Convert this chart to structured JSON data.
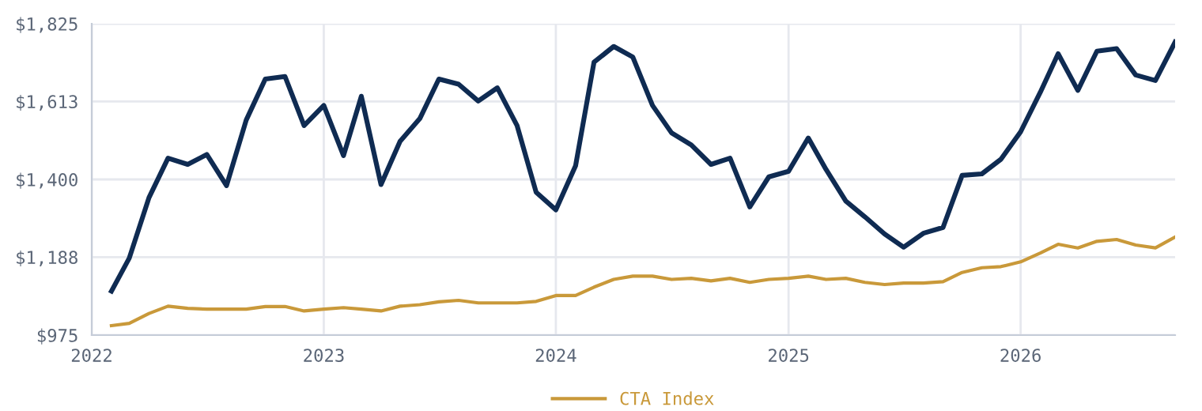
{
  "chart_data": {
    "type": "line",
    "x": [
      "2022-02",
      "2022-03",
      "2022-04",
      "2022-05",
      "2022-06",
      "2022-07",
      "2022-08",
      "2022-09",
      "2022-10",
      "2022-11",
      "2022-12",
      "2023-01",
      "2023-02",
      "2023-03",
      "2023-04",
      "2023-05",
      "2023-06",
      "2023-07",
      "2023-08",
      "2023-09",
      "2023-10",
      "2023-11",
      "2023-12",
      "2024-01",
      "2024-02",
      "2024-03",
      "2024-04",
      "2024-05",
      "2024-06",
      "2024-07",
      "2024-08",
      "2024-09",
      "2024-10",
      "2024-11",
      "2024-12",
      "2025-01",
      "2025-02",
      "2025-03",
      "2025-04",
      "2025-05",
      "2025-06",
      "2025-07",
      "2025-08",
      "2025-09",
      "2025-10",
      "2025-11",
      "2025-12",
      "2026-01",
      "2026-02",
      "2026-03",
      "2026-04",
      "2026-05",
      "2026-06",
      "2026-07",
      "2026-08",
      "2026-09"
    ],
    "series": [
      {
        "color": "#0f2b52",
        "values": [
          1095,
          1185,
          1350,
          1458,
          1441,
          1468,
          1383,
          1562,
          1674,
          1681,
          1547,
          1602,
          1465,
          1627,
          1386,
          1504,
          1566,
          1674,
          1660,
          1614,
          1650,
          1547,
          1365,
          1317,
          1437,
          1720,
          1763,
          1734,
          1602,
          1527,
          1494,
          1441,
          1458,
          1325,
          1407,
          1422,
          1513,
          1427,
          1341,
          1298,
          1251,
          1215,
          1253,
          1269,
          1411,
          1415,
          1455,
          1530,
          1638,
          1743,
          1643,
          1750,
          1757,
          1685,
          1670,
          1775
        ]
      },
      {
        "name": "CTA Index",
        "color": "#c9993a",
        "values": [
          1001,
          1007,
          1034,
          1054,
          1048,
          1046,
          1046,
          1046,
          1053,
          1053,
          1041,
          1046,
          1050,
          1046,
          1041,
          1054,
          1058,
          1066,
          1070,
          1063,
          1063,
          1063,
          1067,
          1083,
          1083,
          1106,
          1127,
          1136,
          1136,
          1127,
          1130,
          1123,
          1130,
          1119,
          1127,
          1130,
          1136,
          1127,
          1130,
          1119,
          1113,
          1117,
          1117,
          1121,
          1146,
          1159,
          1162,
          1175,
          1199,
          1223,
          1213,
          1231,
          1236,
          1221,
          1213,
          1243
        ]
      }
    ],
    "xlim": [
      "2022-01",
      "2026-09"
    ],
    "xticks": [
      "2022",
      "2023",
      "2024",
      "2025",
      "2026"
    ],
    "ylim": [
      975,
      1825
    ],
    "yticks": [
      {
        "value": 975,
        "label": "$975"
      },
      {
        "value": 1188,
        "label": "$1,188"
      },
      {
        "value": 1400,
        "label": "$1,400"
      },
      {
        "value": 1613,
        "label": "$1,613"
      },
      {
        "value": 1825,
        "label": "$1,825"
      }
    ],
    "grid": true,
    "legend": "bottom",
    "marker": "none",
    "line_style": "solid"
  }
}
